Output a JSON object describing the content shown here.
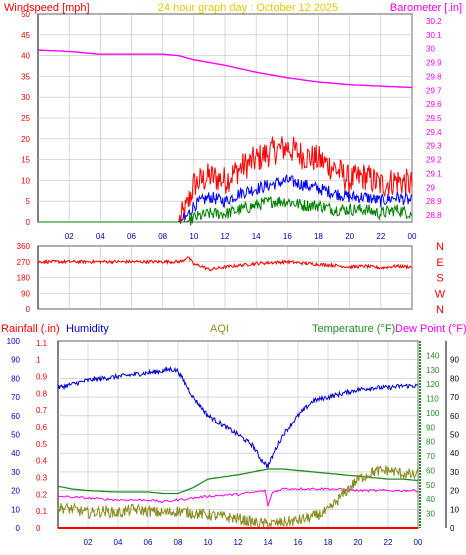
{
  "header": {
    "windspeed_label": "Windspeed [mph]",
    "graph_title": "24 hour graph day : October 12 2025",
    "barometer_label": "Barometer [.in]"
  },
  "colors": {
    "wind_gust": "#ff0000",
    "wind_avg": "#0000ff",
    "wind_low": "#008000",
    "barometer": "#ff00ff",
    "direction": "#ff0000",
    "humidity": "#0000cc",
    "temperature": "#228b22",
    "dewpoint": "#ff00ff",
    "aqi": "#8b8b23",
    "rainfall": "#ff0000",
    "title": "#e6c800",
    "axis_grid": "#c0c0c0"
  },
  "chart_data": [
    {
      "type": "line",
      "id": "wind",
      "title": "24 hour graph day : October 12 2025",
      "ylabel": "Windspeed [mph]",
      "ylabel_right": "Barometer [.in]",
      "ylim": [
        0,
        50
      ],
      "ylim_right": [
        28.75,
        30.25
      ],
      "yticks": [
        "0",
        "5",
        "10",
        "15",
        "20",
        "25",
        "30",
        "35",
        "40",
        "45",
        "50"
      ],
      "yticks_right": [
        "28.8",
        "28.9",
        "29",
        "29.1",
        "29.2",
        "29.3",
        "29.4",
        "29.5",
        "29.6",
        "29.7",
        "29.8",
        "29.9",
        "30",
        "30.1",
        "30.2"
      ],
      "xlim": [
        0,
        24
      ],
      "xticks": [
        "02",
        "04",
        "06",
        "08",
        "10",
        "12",
        "14",
        "16",
        "18",
        "20",
        "22",
        "00"
      ],
      "grid": true,
      "series": [
        {
          "role": "gust",
          "x": [
            0,
            9,
            9.5,
            10,
            11,
            12,
            13,
            14,
            15,
            16,
            17,
            18,
            19,
            20,
            21,
            22,
            23,
            24
          ],
          "y": [
            0,
            0,
            3,
            9,
            11,
            10,
            13,
            15,
            17,
            18,
            16,
            15,
            13,
            10,
            11,
            9,
            10,
            9
          ]
        },
        {
          "role": "average",
          "x": [
            0,
            9,
            9.5,
            10,
            11,
            12,
            13,
            14,
            15,
            16,
            17,
            18,
            19,
            20,
            21,
            22,
            23,
            24
          ],
          "y": [
            0,
            0,
            1,
            4,
            6,
            5,
            7,
            8,
            9,
            10,
            9,
            8,
            7,
            6,
            6,
            5,
            6,
            5
          ]
        },
        {
          "role": "low",
          "x": [
            0,
            9,
            9.5,
            10,
            11,
            12,
            13,
            14,
            15,
            16,
            17,
            18,
            19,
            20,
            21,
            22,
            23,
            24
          ],
          "y": [
            0,
            0,
            0,
            1,
            2,
            2,
            3,
            4,
            5,
            5,
            4,
            4,
            3,
            3,
            3,
            2,
            3,
            2
          ]
        },
        {
          "role": "barometer",
          "x": [
            0,
            2,
            4,
            6,
            8,
            9,
            10,
            12,
            14,
            16,
            18,
            20,
            22,
            24
          ],
          "y": [
            29.99,
            29.98,
            29.96,
            29.96,
            29.96,
            29.95,
            29.92,
            29.88,
            29.83,
            29.79,
            29.76,
            29.74,
            29.73,
            29.72
          ],
          "axis": "right"
        }
      ]
    },
    {
      "type": "line",
      "id": "direction",
      "ylim": [
        0,
        360
      ],
      "yticks": [
        "0",
        "90",
        "180",
        "270",
        "360"
      ],
      "compass": [
        "N",
        "W",
        "S",
        "E",
        "N"
      ],
      "xlim": [
        0,
        24
      ],
      "grid": true,
      "series": [
        {
          "role": "wind direction",
          "x": [
            0,
            9,
            9.3,
            9.6,
            10,
            10.5,
            11,
            12,
            13,
            14,
            15,
            16,
            17,
            18,
            19,
            20,
            21,
            22,
            23,
            24
          ],
          "y": [
            270,
            270,
            275,
            300,
            255,
            245,
            225,
            240,
            250,
            260,
            265,
            270,
            262,
            255,
            250,
            240,
            245,
            235,
            245,
            240
          ]
        }
      ]
    },
    {
      "type": "line",
      "id": "climate",
      "labels": {
        "rainfall": "Rainfall (.in)",
        "humidity": "Humidity",
        "aqi": "AQI",
        "temperature": "Temperature (°F)",
        "dewpoint": "Dew Point (°F)"
      },
      "ylim_left": [
        0,
        100
      ],
      "yticks_left": [
        "0",
        "10",
        "20",
        "30",
        "40",
        "50",
        "60",
        "70",
        "80",
        "90",
        "100"
      ],
      "rain_ticks": [
        "0",
        "0.1",
        "0.2",
        "0.3",
        "0.4",
        "0.5",
        "0.6",
        "0.7",
        "0.8",
        "0.9",
        "1",
        "1.1"
      ],
      "ylim_temp": [
        20,
        150
      ],
      "yticks_temp": [
        "30",
        "40",
        "50",
        "60",
        "70",
        "80",
        "90",
        "100",
        "110",
        "120",
        "130",
        "140"
      ],
      "ylim_dew": [
        0,
        100
      ],
      "yticks_dew": [
        "0",
        "10",
        "20",
        "30",
        "40",
        "50",
        "60",
        "70",
        "80",
        "90"
      ],
      "xlim": [
        0,
        24
      ],
      "xticks": [
        "02",
        "04",
        "06",
        "08",
        "10",
        "12",
        "14",
        "16",
        "18",
        "20",
        "22",
        "00"
      ],
      "grid": true,
      "series": [
        {
          "role": "humidity",
          "x": [
            0,
            1,
            2,
            4,
            6,
            7,
            7.5,
            8,
            9,
            10,
            11,
            12,
            13,
            13.5,
            14,
            14.5,
            15,
            16,
            17,
            18,
            19,
            20,
            21,
            22,
            23,
            24
          ],
          "y": [
            75,
            77,
            79,
            81,
            83,
            84,
            85,
            84,
            70,
            60,
            55,
            50,
            44,
            37,
            33,
            42,
            50,
            60,
            68,
            70,
            72,
            74,
            75,
            75,
            76,
            76
          ]
        },
        {
          "role": "temperature",
          "x": [
            0,
            1,
            2,
            4,
            6,
            7,
            8,
            9,
            10,
            12,
            13,
            14,
            15,
            16,
            18,
            19,
            20,
            21,
            22,
            23,
            24
          ],
          "y": [
            49,
            47,
            46,
            45,
            45,
            44,
            44,
            48,
            54,
            57,
            59,
            61,
            61,
            60,
            58,
            57,
            56,
            55,
            54,
            54,
            53
          ]
        },
        {
          "role": "dewpoint",
          "x": [
            0,
            2,
            4,
            6,
            7,
            8,
            9,
            10,
            12,
            13,
            13.8,
            14,
            14.3,
            15,
            16,
            18,
            20,
            22,
            24
          ],
          "y": [
            17,
            16,
            15,
            15,
            14,
            15,
            16,
            17,
            18,
            19,
            20,
            12,
            19,
            21,
            21,
            21,
            20,
            20,
            20
          ]
        },
        {
          "role": "aqi",
          "x": [
            0,
            1,
            2,
            3,
            4,
            5,
            6,
            7,
            8,
            9,
            10,
            11,
            12,
            13,
            14,
            15,
            16,
            17,
            18,
            19,
            20,
            21,
            22,
            23,
            24
          ],
          "y": [
            11,
            10,
            8,
            9,
            8,
            10,
            9,
            8,
            9,
            8,
            7,
            6,
            5,
            3,
            2,
            3,
            4,
            6,
            9,
            18,
            26,
            30,
            31,
            29,
            28
          ]
        },
        {
          "role": "rainfall",
          "x": [
            0,
            24
          ],
          "y": [
            0,
            0
          ]
        }
      ]
    }
  ]
}
